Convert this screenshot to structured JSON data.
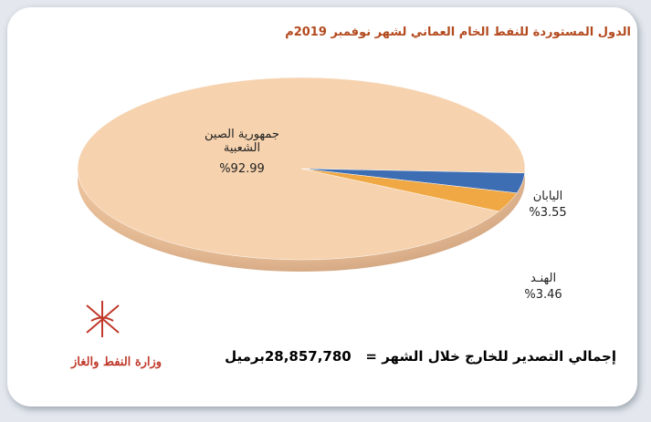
{
  "chart_data": {
    "type": "pie",
    "title": "الدول المستوردة للنفط الخام العماني لشهر نوفمبر 2019م",
    "categories": [
      "جمهورية الصين الشعبية",
      "اليابان",
      "الهنـد"
    ],
    "values": [
      92.99,
      3.55,
      3.46
    ],
    "value_labels": [
      "%92.99",
      "%3.55",
      "%3.46"
    ],
    "colors": [
      "#f6d2ae",
      "#3d6db3",
      "#f0a845"
    ],
    "annotations": [
      "إجمالي التصدير للخارج خلال الشهر =",
      "28,857,780برميل"
    ],
    "organization": "وزارة النفط والغاز"
  }
}
